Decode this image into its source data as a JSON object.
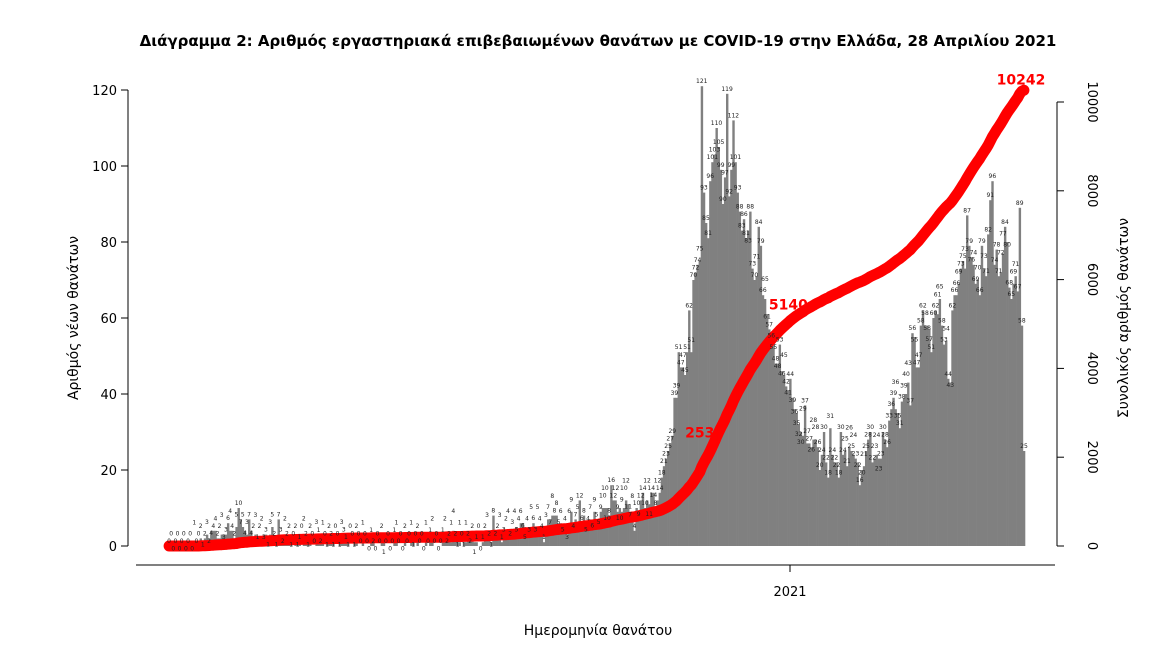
{
  "chart_data": {
    "type": "bar",
    "title": "Διάγραμμα 2: Αριθμός εργαστηριακά επιβεβαιωμένων θανάτων με COVID-19 στην Ελλάδα, 28 Απριλίου 2021",
    "xlabel": "Ημερομηνία θανάτου",
    "ylabel": "Αριθμός νέων θανάτων",
    "y2label": "Συνολικός αριθμός θανάτων",
    "ylim": [
      0,
      120
    ],
    "y_ticks": [
      0,
      20,
      40,
      60,
      80,
      100,
      120
    ],
    "y2lim": [
      0,
      10300
    ],
    "y2_ticks": [
      0,
      2000,
      4000,
      6000,
      8000,
      10000
    ],
    "x_ticks": [
      {
        "label": "2021"
      }
    ],
    "grid": false,
    "bar_color": "#808080",
    "line_color": "#ff0000",
    "series": [
      {
        "type": "bar",
        "values": [
          0,
          0,
          0,
          0,
          0,
          0,
          0,
          0,
          0,
          0,
          0,
          0,
          1,
          0,
          0,
          2,
          1,
          2,
          3,
          2,
          4,
          4,
          4,
          2,
          2,
          3,
          3,
          3,
          6,
          4,
          4,
          2,
          5,
          10,
          7,
          5,
          4,
          3,
          7,
          4,
          2,
          3,
          1,
          2,
          2,
          3,
          3,
          1,
          3,
          5,
          2,
          1,
          7,
          3,
          2,
          2,
          2,
          2,
          1,
          0,
          2,
          1,
          1,
          0,
          2,
          2,
          1,
          2,
          0,
          0,
          3,
          1,
          2,
          1,
          0,
          1,
          2,
          2,
          1,
          0,
          0,
          1,
          3,
          3,
          1,
          1,
          0,
          0,
          1,
          2,
          0,
          0,
          1,
          0,
          0,
          0,
          1,
          2,
          0,
          0,
          0,
          2,
          1,
          0,
          0,
          0,
          0,
          1,
          1,
          0,
          0,
          0,
          2,
          0,
          0,
          1,
          1,
          0,
          2,
          0,
          0,
          0,
          1,
          0,
          1,
          2,
          0,
          0,
          0,
          0,
          1,
          2,
          2,
          2,
          1,
          4,
          2,
          1,
          1,
          0,
          1,
          1,
          2,
          2,
          2,
          1,
          1,
          0,
          0,
          1,
          2,
          3,
          2,
          1,
          8,
          2,
          2,
          3,
          1,
          3,
          2,
          4,
          2,
          3,
          4,
          5,
          4,
          6,
          6,
          5,
          4,
          3,
          5,
          6,
          3,
          5,
          4,
          4,
          1,
          3,
          7,
          7,
          8,
          8,
          8,
          5,
          6,
          5,
          4,
          3,
          6,
          9,
          4,
          7,
          5,
          12,
          6,
          8,
          5,
          4,
          7,
          6,
          9,
          5,
          5,
          9,
          10,
          10,
          10,
          8,
          16,
          12,
          12,
          9,
          10,
          9,
          10,
          12,
          11,
          7,
          8,
          4,
          10,
          9,
          12,
          14,
          10,
          12,
          11,
          14,
          14,
          8,
          12,
          14,
          18,
          21,
          23,
          25,
          27,
          29,
          39,
          39,
          51,
          47,
          47,
          45,
          51,
          62,
          51,
          70,
          72,
          74,
          75,
          121,
          93,
          85,
          81,
          96,
          101,
          103,
          110,
          105,
          99,
          90,
          97,
          119,
          92,
          99,
          112,
          101,
          93,
          88,
          83,
          86,
          81,
          83,
          88,
          73,
          70,
          71,
          84,
          79,
          66,
          65,
          61,
          57,
          56,
          55,
          48,
          48,
          53,
          46,
          45,
          42,
          41,
          44,
          39,
          36,
          35,
          32,
          30,
          29,
          37,
          27,
          27,
          26,
          28,
          28,
          26,
          20,
          24,
          30,
          22,
          18,
          31,
          24,
          22,
          22,
          18,
          30,
          24,
          25,
          21,
          26,
          25,
          24,
          23,
          22,
          16,
          20,
          21,
          25,
          28,
          30,
          22,
          23,
          24,
          23,
          23,
          30,
          28,
          26,
          33,
          36,
          39,
          36,
          35,
          31,
          38,
          39,
          40,
          43,
          37,
          56,
          55,
          47,
          47,
          58,
          62,
          58,
          58,
          57,
          51,
          60,
          62,
          61,
          65,
          58,
          53,
          54,
          44,
          43,
          62,
          66,
          66,
          69,
          73,
          75,
          73,
          87,
          79,
          76,
          74,
          69,
          70,
          66,
          79,
          73,
          71,
          82,
          91,
          96,
          74,
          78,
          71,
          72,
          77,
          84,
          80,
          68,
          65,
          69,
          71,
          67,
          89,
          58,
          25
        ]
      },
      {
        "type": "line",
        "axis": "right",
        "cumulative": true
      }
    ],
    "annotations": [
      {
        "text": "2530",
        "value": 2530
      },
      {
        "text": "5140",
        "value": 5140
      },
      {
        "text": "10242",
        "value": 10242
      }
    ]
  }
}
